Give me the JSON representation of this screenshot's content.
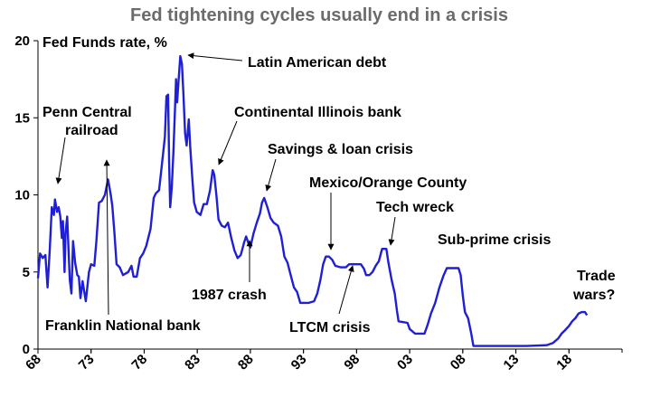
{
  "chart_data": {
    "type": "line",
    "title": "Fed tightening cycles usually end in a crisis",
    "ylabel": "Fed Funds rate, %",
    "xlabel": "",
    "ylim": [
      0,
      20
    ],
    "xlim": [
      1968,
      2023
    ],
    "yticks": [
      "0",
      "5",
      "10",
      "15",
      "20"
    ],
    "xticks": [
      "68",
      "73",
      "78",
      "83",
      "88",
      "93",
      "98",
      "03",
      "08",
      "13",
      "18"
    ],
    "grid": false,
    "colors": {
      "line": "#1f1fd6",
      "title": "#6b6b6b",
      "axis": "#000000"
    },
    "series": [
      {
        "name": "",
        "points": [
          [
            1968.0,
            4.6
          ],
          [
            1968.2,
            6.2
          ],
          [
            1968.45,
            5.9
          ],
          [
            1968.7,
            6.1
          ],
          [
            1968.9,
            4.0
          ],
          [
            1969.1,
            6.3
          ],
          [
            1969.3,
            9.2
          ],
          [
            1969.5,
            8.7
          ],
          [
            1969.6,
            9.7
          ],
          [
            1969.8,
            8.9
          ],
          [
            1969.95,
            9.2
          ],
          [
            1970.1,
            8.6
          ],
          [
            1970.25,
            7.2
          ],
          [
            1970.35,
            8.3
          ],
          [
            1970.5,
            5.0
          ],
          [
            1970.6,
            7.5
          ],
          [
            1970.75,
            8.6
          ],
          [
            1970.9,
            6.0
          ],
          [
            1971.0,
            4.5
          ],
          [
            1971.15,
            3.6
          ],
          [
            1971.3,
            7.0
          ],
          [
            1971.5,
            5.6
          ],
          [
            1971.7,
            4.8
          ],
          [
            1971.85,
            4.7
          ],
          [
            1972.0,
            3.3
          ],
          [
            1972.2,
            4.4
          ],
          [
            1972.5,
            3.1
          ],
          [
            1972.8,
            5.0
          ],
          [
            1973.0,
            5.5
          ],
          [
            1973.3,
            5.4
          ],
          [
            1973.5,
            7.0
          ],
          [
            1973.75,
            9.5
          ],
          [
            1974.0,
            9.6
          ],
          [
            1974.3,
            10.0
          ],
          [
            1974.6,
            11.0
          ],
          [
            1974.85,
            10.0
          ],
          [
            1975.0,
            9.3
          ],
          [
            1975.2,
            7.5
          ],
          [
            1975.4,
            5.5
          ],
          [
            1975.7,
            5.3
          ],
          [
            1976.0,
            4.8
          ],
          [
            1976.5,
            5.0
          ],
          [
            1976.8,
            5.4
          ],
          [
            1977.0,
            4.7
          ],
          [
            1977.3,
            4.7
          ],
          [
            1977.6,
            5.9
          ],
          [
            1977.9,
            6.2
          ],
          [
            1978.2,
            6.7
          ],
          [
            1978.6,
            7.8
          ],
          [
            1978.9,
            9.8
          ],
          [
            1979.1,
            10.1
          ],
          [
            1979.4,
            10.3
          ],
          [
            1979.6,
            11.5
          ],
          [
            1979.8,
            12.8
          ],
          [
            1979.95,
            13.8
          ],
          [
            1980.1,
            16.4
          ],
          [
            1980.25,
            16.5
          ],
          [
            1980.35,
            12.0
          ],
          [
            1980.45,
            9.2
          ],
          [
            1980.6,
            10.5
          ],
          [
            1980.75,
            12.8
          ],
          [
            1980.9,
            15.5
          ],
          [
            1981.0,
            17.5
          ],
          [
            1981.1,
            16.0
          ],
          [
            1981.25,
            17.5
          ],
          [
            1981.4,
            19.0
          ],
          [
            1981.55,
            18.5
          ],
          [
            1981.7,
            16.5
          ],
          [
            1981.85,
            14.0
          ],
          [
            1982.0,
            13.2
          ],
          [
            1982.2,
            14.9
          ],
          [
            1982.35,
            13.0
          ],
          [
            1982.55,
            10.9
          ],
          [
            1982.7,
            9.5
          ],
          [
            1982.95,
            8.9
          ],
          [
            1983.3,
            8.7
          ],
          [
            1983.6,
            9.4
          ],
          [
            1983.9,
            9.4
          ],
          [
            1984.2,
            10.3
          ],
          [
            1984.45,
            11.6
          ],
          [
            1984.6,
            11.3
          ],
          [
            1984.8,
            10.0
          ],
          [
            1985.0,
            8.4
          ],
          [
            1985.3,
            8.0
          ],
          [
            1985.6,
            7.9
          ],
          [
            1985.9,
            8.2
          ],
          [
            1986.2,
            7.2
          ],
          [
            1986.5,
            6.4
          ],
          [
            1986.8,
            5.9
          ],
          [
            1987.1,
            6.1
          ],
          [
            1987.4,
            6.9
          ],
          [
            1987.6,
            7.3
          ],
          [
            1987.8,
            6.9
          ],
          [
            1988.0,
            6.6
          ],
          [
            1988.3,
            7.5
          ],
          [
            1988.6,
            8.2
          ],
          [
            1988.9,
            8.8
          ],
          [
            1989.1,
            9.5
          ],
          [
            1989.3,
            9.8
          ],
          [
            1989.6,
            9.2
          ],
          [
            1989.9,
            8.5
          ],
          [
            1990.2,
            8.2
          ],
          [
            1990.6,
            8.0
          ],
          [
            1990.9,
            7.3
          ],
          [
            1991.2,
            6.0
          ],
          [
            1991.5,
            5.6
          ],
          [
            1991.8,
            4.8
          ],
          [
            1992.1,
            4.0
          ],
          [
            1992.4,
            3.7
          ],
          [
            1992.7,
            3.0
          ],
          [
            1993.0,
            3.0
          ],
          [
            1993.5,
            3.0
          ],
          [
            1994.0,
            3.1
          ],
          [
            1994.3,
            3.6
          ],
          [
            1994.6,
            4.5
          ],
          [
            1994.85,
            5.5
          ],
          [
            1995.1,
            6.0
          ],
          [
            1995.4,
            6.0
          ],
          [
            1995.7,
            5.8
          ],
          [
            1996.0,
            5.4
          ],
          [
            1996.5,
            5.3
          ],
          [
            1997.0,
            5.3
          ],
          [
            1997.3,
            5.5
          ],
          [
            1997.8,
            5.5
          ],
          [
            1998.4,
            5.5
          ],
          [
            1998.7,
            5.2
          ],
          [
            1998.9,
            4.8
          ],
          [
            1999.2,
            4.8
          ],
          [
            1999.5,
            5.0
          ],
          [
            1999.8,
            5.4
          ],
          [
            2000.1,
            5.7
          ],
          [
            2000.4,
            6.5
          ],
          [
            2000.8,
            6.5
          ],
          [
            2001.0,
            5.6
          ],
          [
            2001.3,
            4.5
          ],
          [
            2001.6,
            3.6
          ],
          [
            2001.8,
            2.5
          ],
          [
            2001.95,
            1.8
          ],
          [
            2002.4,
            1.75
          ],
          [
            2002.8,
            1.7
          ],
          [
            2003.0,
            1.3
          ],
          [
            2003.5,
            1.0
          ],
          [
            2004.0,
            1.0
          ],
          [
            2004.4,
            1.0
          ],
          [
            2004.7,
            1.6
          ],
          [
            2005.0,
            2.3
          ],
          [
            2005.4,
            3.0
          ],
          [
            2005.8,
            4.0
          ],
          [
            2006.2,
            4.8
          ],
          [
            2006.5,
            5.25
          ],
          [
            2006.9,
            5.25
          ],
          [
            2007.3,
            5.25
          ],
          [
            2007.6,
            5.25
          ],
          [
            2007.8,
            4.8
          ],
          [
            2008.0,
            3.5
          ],
          [
            2008.2,
            2.4
          ],
          [
            2008.5,
            2.0
          ],
          [
            2008.8,
            1.0
          ],
          [
            2009.0,
            0.2
          ],
          [
            2010.0,
            0.2
          ],
          [
            2012.0,
            0.2
          ],
          [
            2014.0,
            0.2
          ],
          [
            2015.9,
            0.25
          ],
          [
            2016.5,
            0.4
          ],
          [
            2017.0,
            0.7
          ],
          [
            2017.3,
            1.0
          ],
          [
            2017.6,
            1.2
          ],
          [
            2018.0,
            1.5
          ],
          [
            2018.3,
            1.8
          ],
          [
            2018.6,
            2.0
          ],
          [
            2018.9,
            2.3
          ],
          [
            2019.2,
            2.4
          ],
          [
            2019.5,
            2.4
          ],
          [
            2019.7,
            2.2
          ]
        ]
      }
    ],
    "annotations": [
      {
        "text": "Fed Funds rate, %"
      },
      {
        "text": "Latin American debt"
      },
      {
        "text": "Penn Central"
      },
      {
        "text": "railroad"
      },
      {
        "text": "Continental Illinois bank"
      },
      {
        "text": "Savings & loan crisis"
      },
      {
        "text": "Mexico/Orange County"
      },
      {
        "text": "Tech wreck"
      },
      {
        "text": "Sub-prime crisis"
      },
      {
        "text": "Trade"
      },
      {
        "text": "wars?"
      },
      {
        "text": "1987 crash"
      },
      {
        "text": "Franklin National bank"
      },
      {
        "text": "LTCM crisis"
      }
    ]
  }
}
